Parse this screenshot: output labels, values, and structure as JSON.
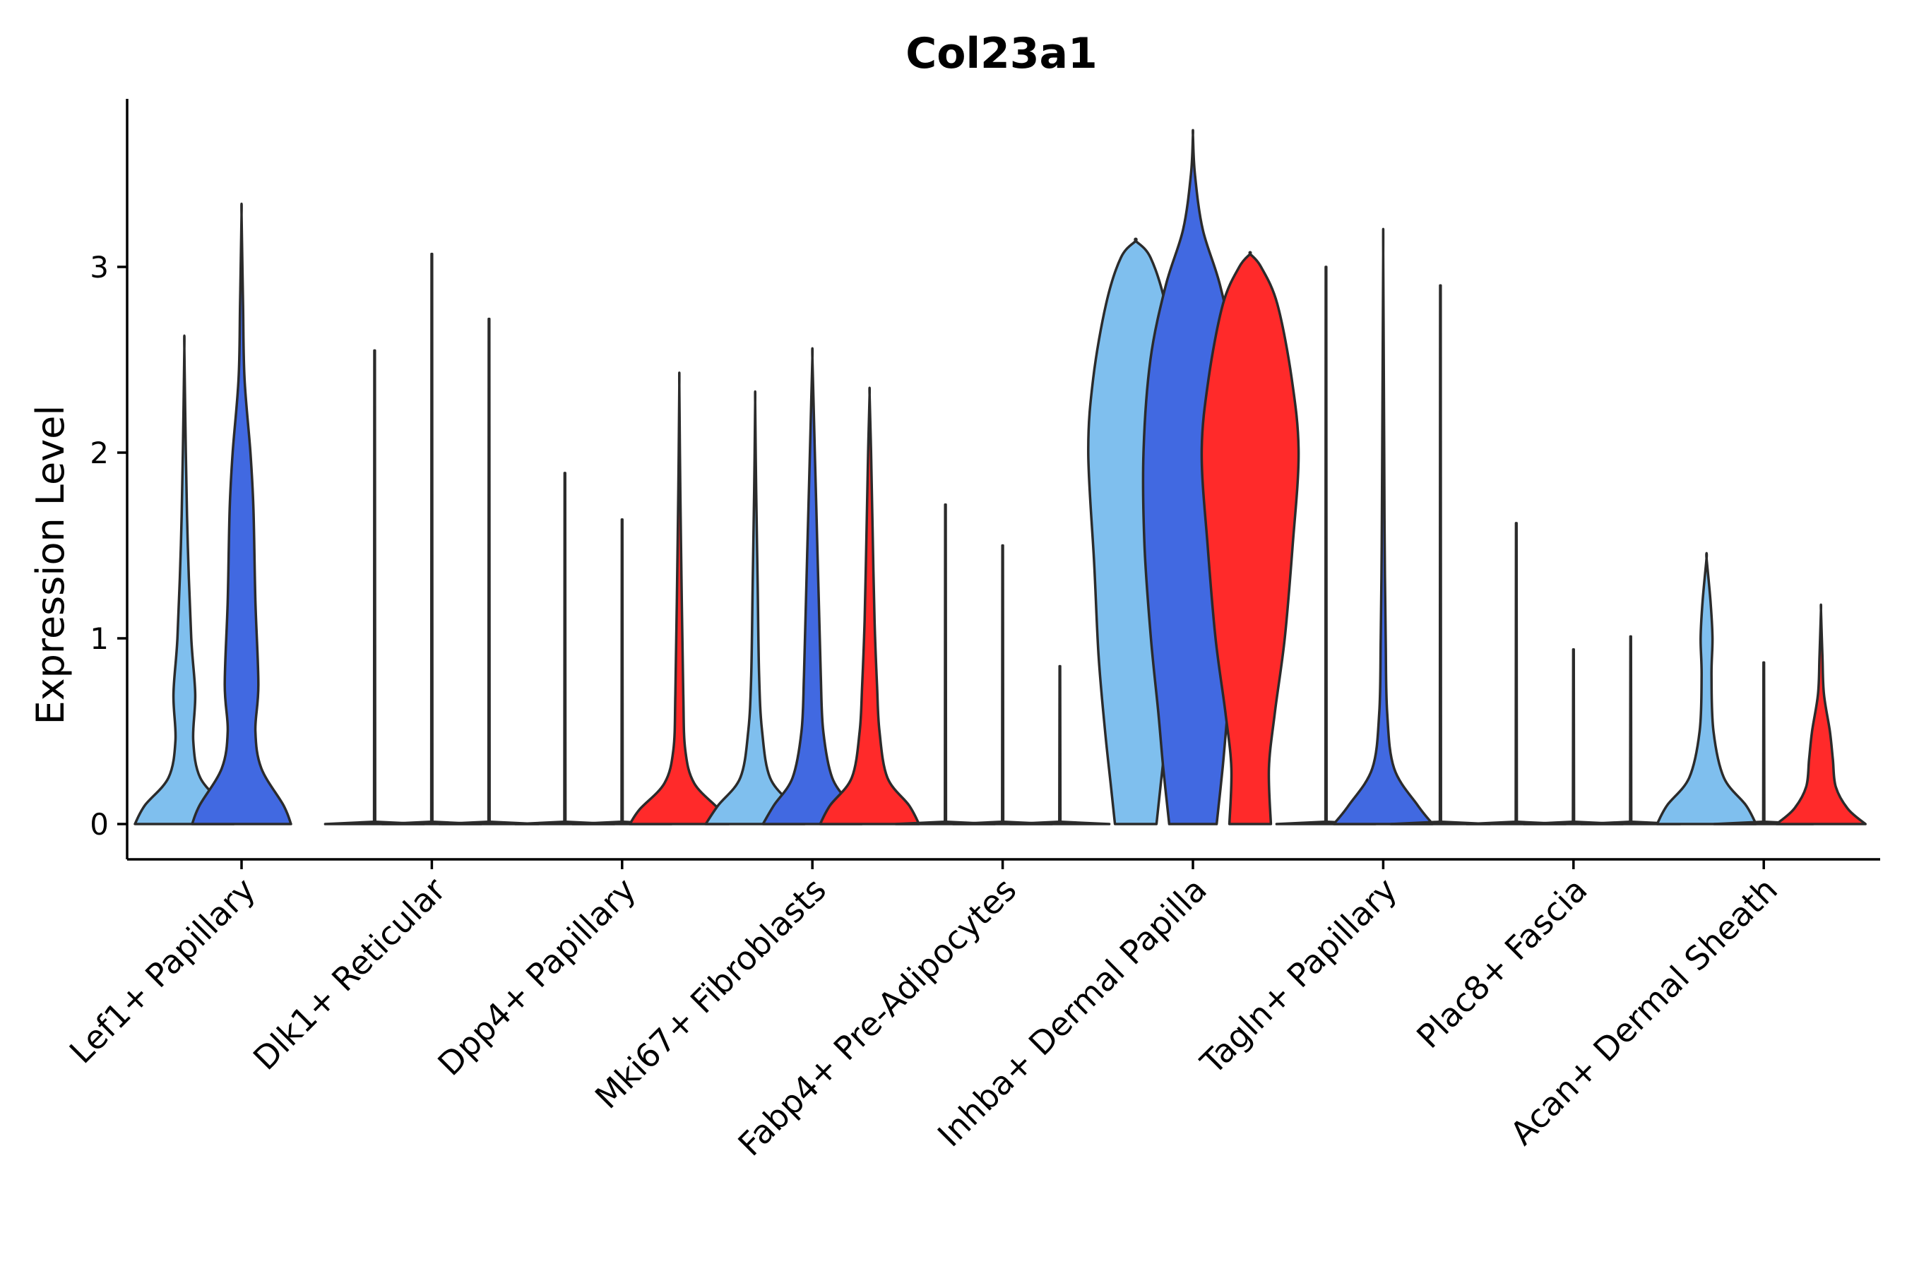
{
  "chart_data": {
    "type": "violin",
    "title": "Col23a1",
    "xlabel": "",
    "ylabel": "Expression Level",
    "ylim": [
      -0.19,
      3.9
    ],
    "yticks": [
      0,
      1,
      2,
      3
    ],
    "grid": false,
    "legend": "none",
    "series_colors": [
      "#7FBFEE",
      "#4169E1",
      "#FF2A2A"
    ],
    "categories": [
      "Lef1+ Papillary",
      "Dlk1+ Reticular",
      "Dpp4+ Papillary",
      "Mki67+ Fibroblasts",
      "Fabp4+ Pre-Adipocytes",
      "Inhba+ Dermal Papilla",
      "Tagln+ Papillary",
      "Plac8+ Fascia",
      "Acan+ Dermal Sheath"
    ],
    "violins": [
      {
        "category": 0,
        "series": 0,
        "max": 2.56,
        "profile": [
          [
            0,
            1
          ],
          [
            0.1,
            0.8
          ],
          [
            0.25,
            0.32
          ],
          [
            0.45,
            0.18
          ],
          [
            0.7,
            0.22
          ],
          [
            1.0,
            0.14
          ],
          [
            1.5,
            0.07
          ],
          [
            2.0,
            0.03
          ],
          [
            2.56,
            0
          ]
        ]
      },
      {
        "category": 0,
        "series": 1,
        "max": 3.28,
        "profile": [
          [
            0,
            1
          ],
          [
            0.1,
            0.85
          ],
          [
            0.3,
            0.4
          ],
          [
            0.5,
            0.28
          ],
          [
            0.75,
            0.34
          ],
          [
            1.2,
            0.28
          ],
          [
            1.7,
            0.24
          ],
          [
            2.0,
            0.18
          ],
          [
            2.4,
            0.06
          ],
          [
            2.8,
            0.03
          ],
          [
            3.28,
            0
          ]
        ]
      },
      {
        "category": 1,
        "series": 0,
        "max": 2.55,
        "profile": []
      },
      {
        "category": 1,
        "series": 1,
        "max": 3.07,
        "profile": []
      },
      {
        "category": 1,
        "series": 2,
        "max": 2.72,
        "profile": []
      },
      {
        "category": 2,
        "series": 0,
        "max": 1.89,
        "profile": []
      },
      {
        "category": 2,
        "series": 1,
        "max": 1.64,
        "profile": []
      },
      {
        "category": 2,
        "series": 2,
        "max": 2.36,
        "profile": [
          [
            0,
            1
          ],
          [
            0.08,
            0.8
          ],
          [
            0.22,
            0.3
          ],
          [
            0.4,
            0.12
          ],
          [
            0.7,
            0.08
          ],
          [
            1.2,
            0.05
          ],
          [
            1.8,
            0.02
          ],
          [
            2.36,
            0
          ]
        ]
      },
      {
        "category": 3,
        "series": 0,
        "max": 2.27,
        "profile": [
          [
            0,
            1
          ],
          [
            0.1,
            0.75
          ],
          [
            0.25,
            0.3
          ],
          [
            0.5,
            0.14
          ],
          [
            0.8,
            0.08
          ],
          [
            1.3,
            0.05
          ],
          [
            1.8,
            0.02
          ],
          [
            2.27,
            0
          ]
        ]
      },
      {
        "category": 3,
        "series": 1,
        "max": 2.51,
        "profile": [
          [
            0,
            1
          ],
          [
            0.1,
            0.78
          ],
          [
            0.25,
            0.4
          ],
          [
            0.5,
            0.22
          ],
          [
            0.8,
            0.17
          ],
          [
            1.2,
            0.13
          ],
          [
            1.7,
            0.08
          ],
          [
            2.1,
            0.04
          ],
          [
            2.51,
            0
          ]
        ]
      },
      {
        "category": 3,
        "series": 2,
        "max": 2.31,
        "profile": [
          [
            0,
            1
          ],
          [
            0.1,
            0.8
          ],
          [
            0.25,
            0.36
          ],
          [
            0.5,
            0.2
          ],
          [
            0.75,
            0.15
          ],
          [
            1.1,
            0.1
          ],
          [
            1.6,
            0.06
          ],
          [
            2.0,
            0.03
          ],
          [
            2.31,
            0
          ]
        ]
      },
      {
        "category": 4,
        "series": 0,
        "max": 1.72,
        "profile": []
      },
      {
        "category": 4,
        "series": 1,
        "max": 1.5,
        "profile": []
      },
      {
        "category": 4,
        "series": 2,
        "max": 0.85,
        "profile": []
      },
      {
        "category": 5,
        "series": 0,
        "max": 3.14,
        "profile": [
          [
            0,
            0.42
          ],
          [
            0.2,
            0.5
          ],
          [
            0.5,
            0.62
          ],
          [
            0.9,
            0.75
          ],
          [
            1.4,
            0.84
          ],
          [
            2.0,
            0.96
          ],
          [
            2.4,
            0.86
          ],
          [
            2.8,
            0.6
          ],
          [
            3.05,
            0.3
          ],
          [
            3.14,
            0
          ]
        ]
      },
      {
        "category": 5,
        "series": 1,
        "max": 3.71,
        "profile": [
          [
            0,
            0.48
          ],
          [
            0.3,
            0.6
          ],
          [
            0.6,
            0.7
          ],
          [
            1.0,
            0.85
          ],
          [
            1.5,
            0.98
          ],
          [
            2.0,
            1.0
          ],
          [
            2.5,
            0.86
          ],
          [
            2.9,
            0.55
          ],
          [
            3.2,
            0.2
          ],
          [
            3.5,
            0.04
          ],
          [
            3.71,
            0
          ]
        ]
      },
      {
        "category": 5,
        "series": 2,
        "max": 3.07,
        "profile": [
          [
            0,
            0.42
          ],
          [
            0.3,
            0.38
          ],
          [
            0.6,
            0.5
          ],
          [
            1.0,
            0.7
          ],
          [
            1.5,
            0.86
          ],
          [
            2.0,
            0.98
          ],
          [
            2.4,
            0.84
          ],
          [
            2.8,
            0.55
          ],
          [
            3.0,
            0.22
          ],
          [
            3.07,
            0
          ]
        ]
      },
      {
        "category": 6,
        "series": 0,
        "max": 3.0,
        "profile": []
      },
      {
        "category": 6,
        "series": 1,
        "max": 3.07,
        "profile": [
          [
            0,
            1
          ],
          [
            0.1,
            0.7
          ],
          [
            0.3,
            0.22
          ],
          [
            0.6,
            0.08
          ],
          [
            1.0,
            0.05
          ],
          [
            1.5,
            0.03
          ],
          [
            2.0,
            0.02
          ],
          [
            3.07,
            0
          ]
        ]
      },
      {
        "category": 6,
        "series": 2,
        "max": 2.9,
        "profile": []
      },
      {
        "category": 7,
        "series": 0,
        "max": 1.62,
        "profile": []
      },
      {
        "category": 7,
        "series": 1,
        "max": 0.94,
        "profile": []
      },
      {
        "category": 7,
        "series": 2,
        "max": 1.01,
        "profile": []
      },
      {
        "category": 8,
        "series": 0,
        "max": 1.43,
        "profile": [
          [
            0,
            1
          ],
          [
            0.1,
            0.8
          ],
          [
            0.25,
            0.35
          ],
          [
            0.5,
            0.14
          ],
          [
            0.8,
            0.1
          ],
          [
            1.0,
            0.12
          ],
          [
            1.2,
            0.08
          ],
          [
            1.43,
            0
          ]
        ]
      },
      {
        "category": 8,
        "series": 1,
        "max": 0.87,
        "profile": []
      },
      {
        "category": 8,
        "series": 2,
        "max": 1.15,
        "profile": [
          [
            0,
            0.9
          ],
          [
            0.08,
            0.55
          ],
          [
            0.2,
            0.3
          ],
          [
            0.35,
            0.24
          ],
          [
            0.5,
            0.18
          ],
          [
            0.7,
            0.06
          ],
          [
            0.9,
            0.03
          ],
          [
            1.15,
            0
          ]
        ]
      }
    ]
  }
}
